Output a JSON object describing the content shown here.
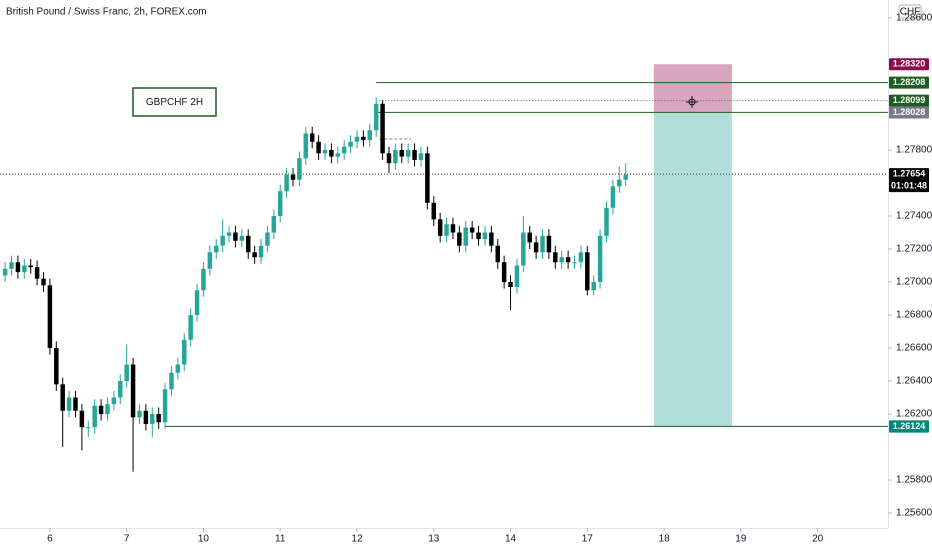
{
  "chart_data": {
    "type": "candlestick",
    "title": "British Pound / Swiss Franc, 2h, FOREX.com",
    "currency": "CHF",
    "annotation": "GBPCHF 2H",
    "up_color": "#26a69a",
    "down_color": "#000000",
    "xlim": [
      -0.8,
      138
    ],
    "ylim": [
      1.25376,
      1.28709
    ],
    "xticks": [
      {
        "value": 7,
        "label": "6"
      },
      {
        "value": 19,
        "label": "7"
      },
      {
        "value": 31,
        "label": "10"
      },
      {
        "value": 43,
        "label": "11"
      },
      {
        "value": 55,
        "label": "12"
      },
      {
        "value": 67,
        "label": "13"
      },
      {
        "value": 79,
        "label": "14"
      },
      {
        "value": 91,
        "label": "17"
      },
      {
        "value": 103,
        "label": "18"
      },
      {
        "value": 115,
        "label": "19"
      },
      {
        "value": 127,
        "label": "20"
      }
    ],
    "yticks": [
      {
        "value": 1.256,
        "label": "1.25600"
      },
      {
        "value": 1.258,
        "label": "1.25800"
      },
      {
        "value": 1.262,
        "label": "1.26200"
      },
      {
        "value": 1.264,
        "label": "1.26400"
      },
      {
        "value": 1.266,
        "label": "1.26600"
      },
      {
        "value": 1.268,
        "label": "1.26800"
      },
      {
        "value": 1.27,
        "label": "1.27000"
      },
      {
        "value": 1.272,
        "label": "1.27200"
      },
      {
        "value": 1.274,
        "label": "1.27400"
      },
      {
        "value": 1.278,
        "label": "1.27800"
      },
      {
        "value": 1.286,
        "label": "1.28600"
      }
    ],
    "ohlc": [
      [
        1.2704,
        1.2712,
        1.27,
        1.2708
      ],
      [
        1.2708,
        1.2716,
        1.2704,
        1.2712
      ],
      [
        1.2712,
        1.2716,
        1.2702,
        1.2706
      ],
      [
        1.2706,
        1.2714,
        1.2702,
        1.271
      ],
      [
        1.271,
        1.2714,
        1.2705,
        1.2709
      ],
      [
        1.2709,
        1.2713,
        1.2698,
        1.2702
      ],
      [
        1.2702,
        1.2706,
        1.2694,
        1.2698
      ],
      [
        1.2698,
        1.2702,
        1.2656,
        1.266
      ],
      [
        1.266,
        1.2664,
        1.2634,
        1.2638
      ],
      [
        1.2638,
        1.2642,
        1.26,
        1.2622
      ],
      [
        1.2622,
        1.2634,
        1.2618,
        1.263
      ],
      [
        1.263,
        1.2634,
        1.2618,
        1.2622
      ],
      [
        1.2622,
        1.2626,
        1.2598,
        1.2612
      ],
      [
        1.2612,
        1.2616,
        1.2606,
        1.2612
      ],
      [
        1.2612,
        1.2629,
        1.2608,
        1.2625
      ],
      [
        1.2625,
        1.2629,
        1.2616,
        1.262
      ],
      [
        1.262,
        1.263,
        1.2616,
        1.2626
      ],
      [
        1.2626,
        1.2634,
        1.2622,
        1.263
      ],
      [
        1.263,
        1.2644,
        1.2626,
        1.264
      ],
      [
        1.264,
        1.2662,
        1.2636,
        1.265
      ],
      [
        1.265,
        1.2654,
        1.2585,
        1.2618
      ],
      [
        1.2618,
        1.2626,
        1.2614,
        1.2622
      ],
      [
        1.2622,
        1.2626,
        1.261,
        1.2614
      ],
      [
        1.2614,
        1.2624,
        1.2606,
        1.262
      ],
      [
        1.262,
        1.2624,
        1.2611,
        1.2615
      ],
      [
        1.2615,
        1.2639,
        1.2611,
        1.2635
      ],
      [
        1.2635,
        1.2649,
        1.2631,
        1.2645
      ],
      [
        1.2645,
        1.2654,
        1.2641,
        1.265
      ],
      [
        1.265,
        1.2669,
        1.2646,
        1.2665
      ],
      [
        1.2665,
        1.2684,
        1.2661,
        1.268
      ],
      [
        1.268,
        1.2699,
        1.2676,
        1.2695
      ],
      [
        1.2695,
        1.2712,
        1.2691,
        1.2708
      ],
      [
        1.2708,
        1.2722,
        1.2704,
        1.2718
      ],
      [
        1.2718,
        1.2726,
        1.2714,
        1.2722
      ],
      [
        1.2722,
        1.2738,
        1.2718,
        1.2728
      ],
      [
        1.2728,
        1.2734,
        1.2724,
        1.273
      ],
      [
        1.273,
        1.2734,
        1.2721,
        1.2725
      ],
      [
        1.2725,
        1.2732,
        1.2721,
        1.2728
      ],
      [
        1.2728,
        1.2732,
        1.2714,
        1.2718
      ],
      [
        1.2718,
        1.2722,
        1.2711,
        1.2715
      ],
      [
        1.2715,
        1.2726,
        1.2711,
        1.2722
      ],
      [
        1.2722,
        1.2734,
        1.2718,
        1.273
      ],
      [
        1.273,
        1.2744,
        1.2726,
        1.274
      ],
      [
        1.274,
        1.2759,
        1.2736,
        1.2755
      ],
      [
        1.2755,
        1.2769,
        1.2751,
        1.2765
      ],
      [
        1.2765,
        1.2769,
        1.2758,
        1.2762
      ],
      [
        1.2762,
        1.2779,
        1.2758,
        1.2775
      ],
      [
        1.2775,
        1.2794,
        1.2771,
        1.279
      ],
      [
        1.279,
        1.2794,
        1.2781,
        1.2785
      ],
      [
        1.2785,
        1.2789,
        1.2774,
        1.2778
      ],
      [
        1.2778,
        1.2784,
        1.2774,
        1.278
      ],
      [
        1.278,
        1.2784,
        1.2772,
        1.2776
      ],
      [
        1.2776,
        1.2782,
        1.2772,
        1.2778
      ],
      [
        1.2778,
        1.2786,
        1.2774,
        1.2782
      ],
      [
        1.2782,
        1.2789,
        1.2778,
        1.2785
      ],
      [
        1.2785,
        1.2792,
        1.2781,
        1.2788
      ],
      [
        1.2788,
        1.2792,
        1.2782,
        1.2786
      ],
      [
        1.2786,
        1.2796,
        1.2782,
        1.2792
      ],
      [
        1.2792,
        1.2812,
        1.2788,
        1.2808
      ],
      [
        1.2808,
        1.281,
        1.2774,
        1.2778
      ],
      [
        1.2778,
        1.2782,
        1.2766,
        1.2772
      ],
      [
        1.2772,
        1.2784,
        1.2768,
        1.278
      ],
      [
        1.278,
        1.2784,
        1.2772,
        1.2776
      ],
      [
        1.2776,
        1.2784,
        1.2772,
        1.278
      ],
      [
        1.278,
        1.2784,
        1.277,
        1.2774
      ],
      [
        1.2774,
        1.2782,
        1.277,
        1.2778
      ],
      [
        1.2778,
        1.2782,
        1.2744,
        1.2748
      ],
      [
        1.2748,
        1.2752,
        1.2734,
        1.2738
      ],
      [
        1.2738,
        1.2742,
        1.2724,
        1.2728
      ],
      [
        1.2728,
        1.2739,
        1.2724,
        1.2735
      ],
      [
        1.2735,
        1.2739,
        1.2726,
        1.273
      ],
      [
        1.273,
        1.2734,
        1.2718,
        1.2722
      ],
      [
        1.2722,
        1.2737,
        1.2718,
        1.2733
      ],
      [
        1.2733,
        1.2737,
        1.2726,
        1.273
      ],
      [
        1.273,
        1.2734,
        1.2722,
        1.2726
      ],
      [
        1.2726,
        1.2734,
        1.2722,
        1.273
      ],
      [
        1.273,
        1.2734,
        1.2718,
        1.2722
      ],
      [
        1.2722,
        1.2726,
        1.2708,
        1.2712
      ],
      [
        1.2712,
        1.2716,
        1.2696,
        1.27
      ],
      [
        1.27,
        1.2704,
        1.2683,
        1.2697
      ],
      [
        1.2697,
        1.2714,
        1.2693,
        1.271
      ],
      [
        1.271,
        1.274,
        1.2706,
        1.273
      ],
      [
        1.273,
        1.2734,
        1.272,
        1.2724
      ],
      [
        1.2724,
        1.2728,
        1.2714,
        1.2718
      ],
      [
        1.2718,
        1.2732,
        1.2714,
        1.2728
      ],
      [
        1.2728,
        1.2732,
        1.2714,
        1.2718
      ],
      [
        1.2718,
        1.2722,
        1.2708,
        1.2712
      ],
      [
        1.2712,
        1.2719,
        1.2708,
        1.2715
      ],
      [
        1.2715,
        1.2719,
        1.2708,
        1.2712
      ],
      [
        1.2712,
        1.2716,
        1.2708,
        1.2712
      ],
      [
        1.2712,
        1.2722,
        1.2708,
        1.2718
      ],
      [
        1.2718,
        1.2722,
        1.2692,
        1.2695
      ],
      [
        1.2695,
        1.2704,
        1.2692,
        1.27
      ],
      [
        1.27,
        1.2732,
        1.2696,
        1.2728
      ],
      [
        1.2728,
        1.2749,
        1.2724,
        1.2745
      ],
      [
        1.2745,
        1.2762,
        1.2741,
        1.2758
      ],
      [
        1.2758,
        1.277,
        1.2754,
        1.2762
      ],
      [
        1.2762,
        1.2772,
        1.2758,
        1.2765
      ]
    ],
    "lines": [
      {
        "value": 1.28208,
        "x_start": 58,
        "x_end": 138,
        "color": "#1b5e20",
        "dash": "none"
      },
      {
        "value": 1.28099,
        "x_start": 58.5,
        "x_end": 138,
        "color": "#555555",
        "dash": "1 2"
      },
      {
        "value": 1.28028,
        "x_start": 58,
        "x_end": 138,
        "color": "#1b5e20",
        "dash": "none"
      },
      {
        "value": 1.27867,
        "x_start": 58.5,
        "x_end": 63.5,
        "color": "#888888",
        "dash": "3 2"
      },
      {
        "value": 1.26125,
        "x_start": 25,
        "x_end": 138,
        "color": "#1b5e20",
        "dash": "none"
      },
      {
        "value": 1.27654,
        "x_start": -0.8,
        "x_end": 138,
        "color": "#333333",
        "dash": "1 2"
      }
    ],
    "position": {
      "x_start": 101.4,
      "x_end": 113.6,
      "stop": 1.2832,
      "entry": 1.28028,
      "target": 1.26125,
      "loss_color": "#d8a7bd",
      "profit_color": "#b2dfdb"
    },
    "price_tags": [
      {
        "value": 1.2832,
        "label": "1.28320",
        "color": "#880e4f"
      },
      {
        "value": 1.28208,
        "label": "1.28208",
        "color": "#1b5e20"
      },
      {
        "value": 1.28099,
        "label": "1.28099",
        "color": "#1b5e20"
      },
      {
        "value": 1.28028,
        "label": "1.28028",
        "color": "#1b5e20"
      },
      {
        "value": 1.28028,
        "label": "1.28028",
        "color": "#787b86"
      },
      {
        "value": 1.27654,
        "label": "1.27654",
        "color": "#000000",
        "sub": "01:01:48"
      },
      {
        "value": 1.26125,
        "label": "1.26125",
        "color": "#1b5e20"
      },
      {
        "value": 1.26124,
        "label": "1.26124",
        "color": "#00897b"
      }
    ]
  }
}
